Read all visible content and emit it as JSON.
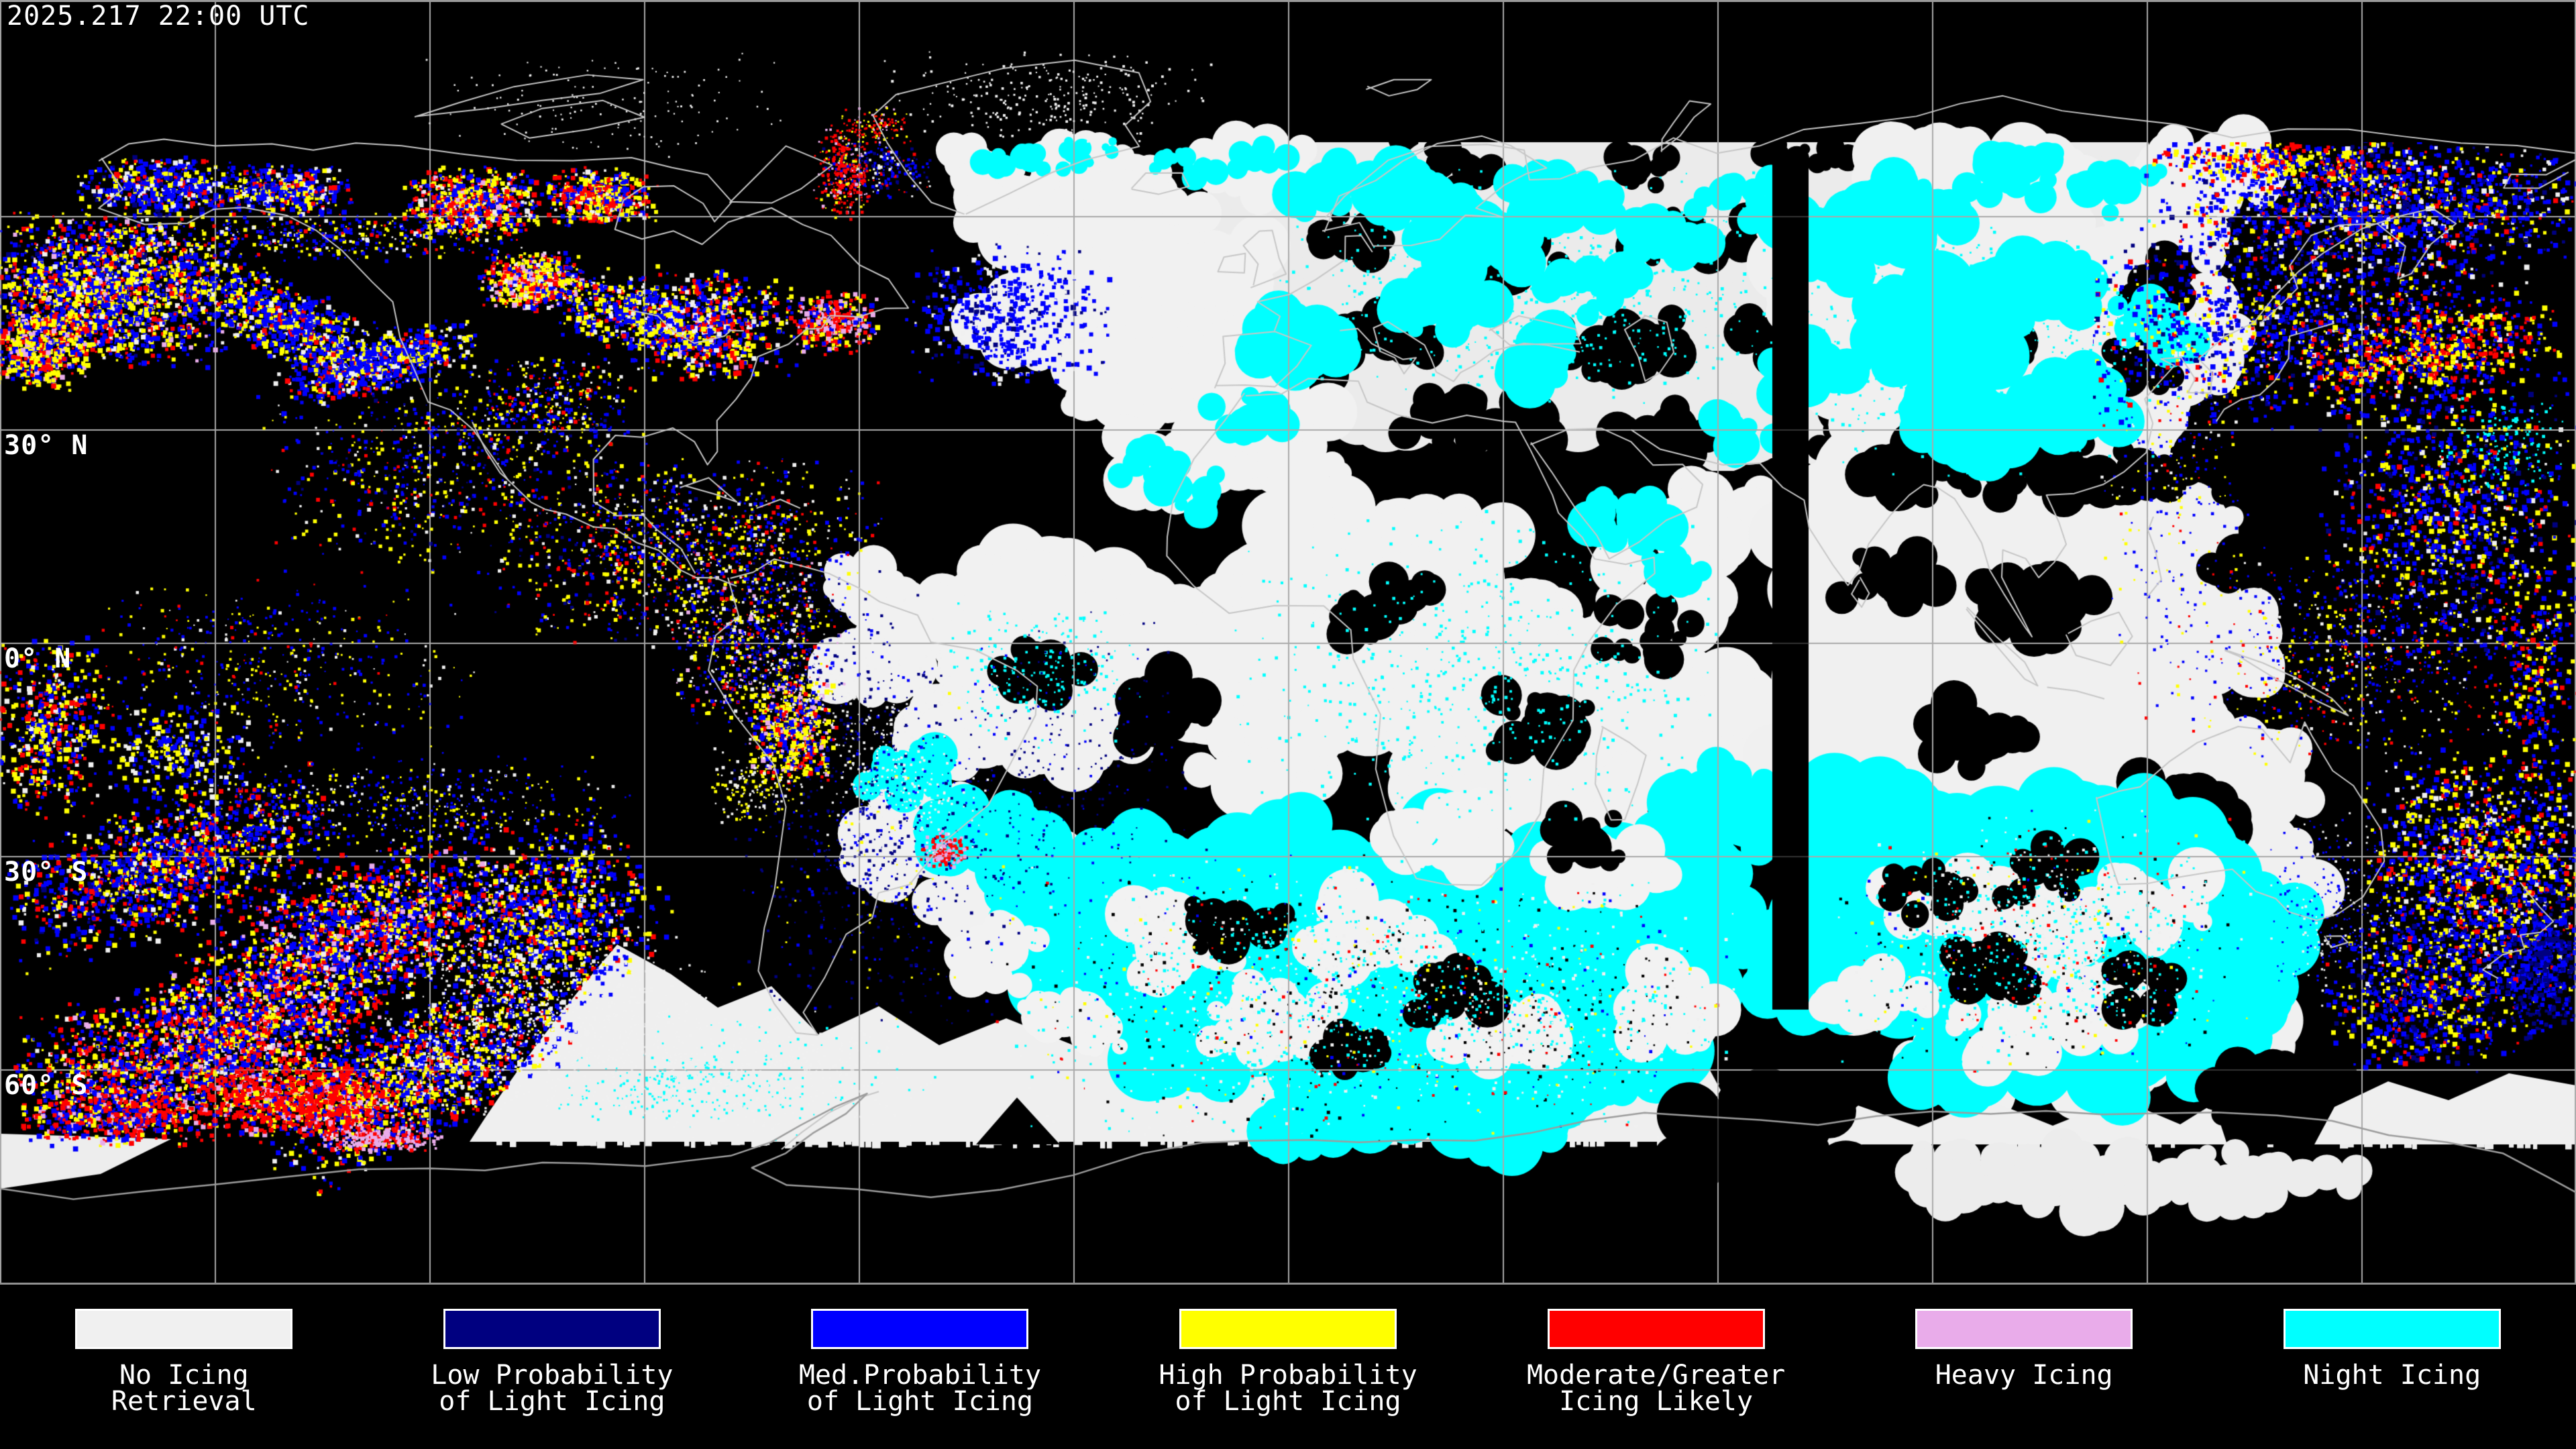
{
  "header": {
    "timestamp": "2025.217 22:00 UTC"
  },
  "map": {
    "projection": "equirectangular",
    "grid": {
      "lon_spacing_deg": 30,
      "lat_spacing_deg": 30
    },
    "lat_labels": [
      {
        "text": "30° N",
        "lat": 30
      },
      {
        "text": "0° N",
        "lat": 0
      },
      {
        "text": "30° S",
        "lat": -30
      },
      {
        "text": "60° S",
        "lat": -60
      }
    ]
  },
  "legend": {
    "items": [
      {
        "id": "no-icing",
        "label": "No Icing\nRetrieval",
        "color": "#F0F0F0"
      },
      {
        "id": "low-prob",
        "label": "Low Probability\nof Light Icing",
        "color": "#000080"
      },
      {
        "id": "med-prob",
        "label": "Med.Probability\nof Light Icing",
        "color": "#0000FF"
      },
      {
        "id": "high-prob",
        "label": "High Probability\nof Light Icing",
        "color": "#FFFF00"
      },
      {
        "id": "moderate",
        "label": "Moderate/Greater\nIcing Likely",
        "color": "#FF0000"
      },
      {
        "id": "heavy",
        "label": "Heavy Icing",
        "color": "#E9ACEA"
      },
      {
        "id": "night",
        "label": "Night Icing",
        "color": "#00FFFF"
      }
    ]
  }
}
